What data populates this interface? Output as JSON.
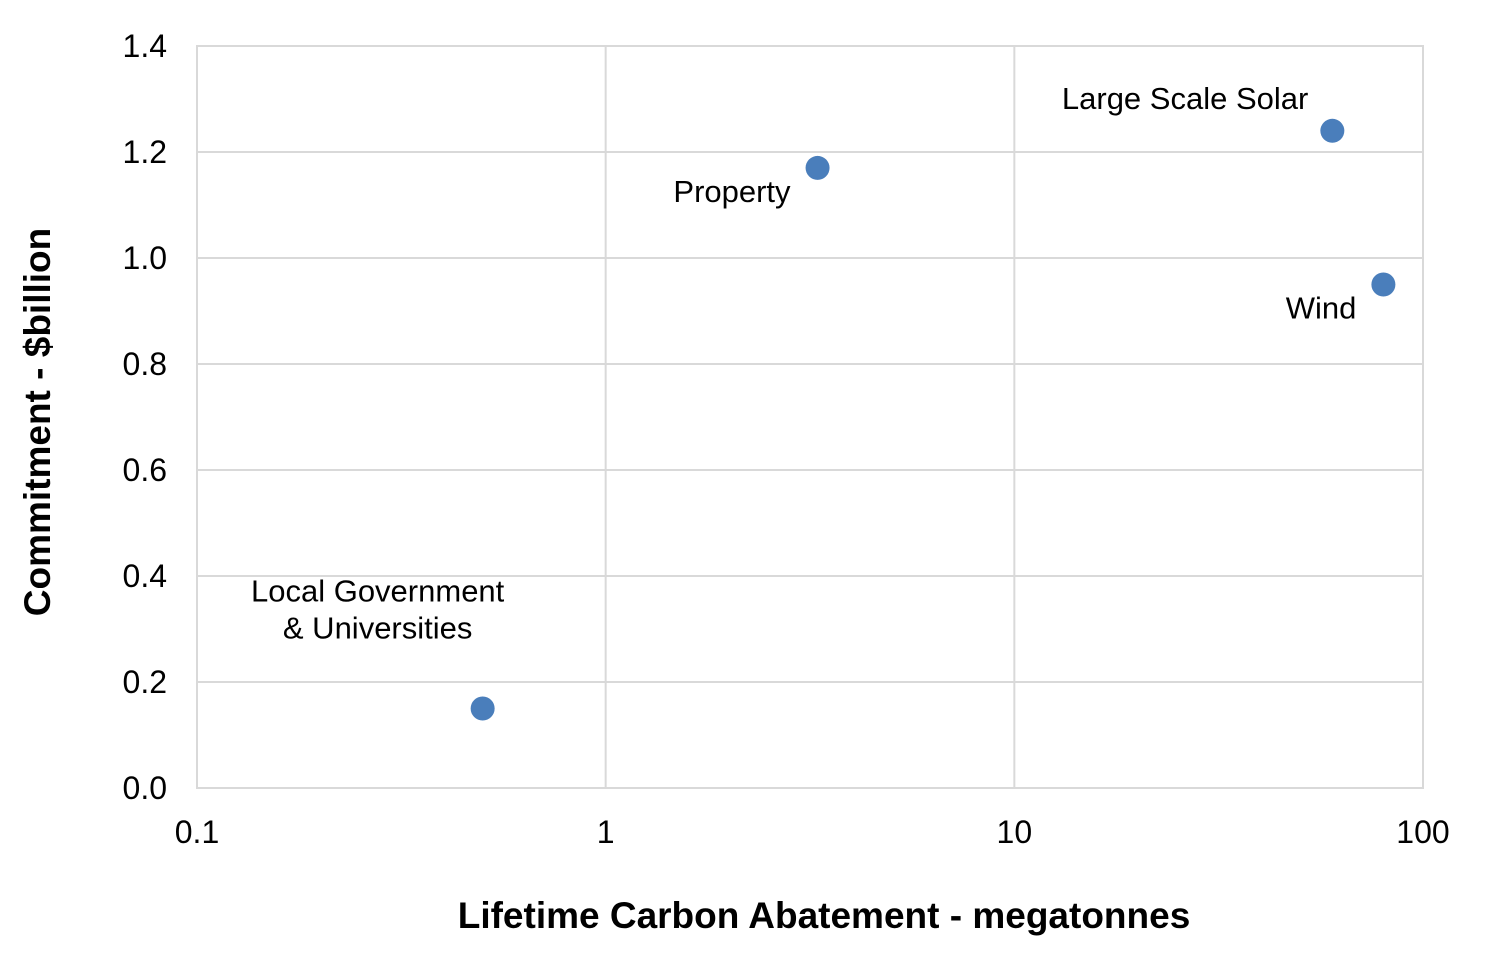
{
  "chart_data": {
    "type": "scatter",
    "title": "",
    "xlabel": "Lifetime Carbon Abatement - megatonnes",
    "ylabel": "Commitment - $billion",
    "x_scale": "log",
    "xlim": [
      0.1,
      100
    ],
    "ylim": [
      0.0,
      1.4
    ],
    "x_ticks": [
      0.1,
      1,
      10,
      100
    ],
    "x_tick_labels": [
      "0.1",
      "1",
      "10",
      "100"
    ],
    "y_ticks": [
      0.0,
      0.2,
      0.4,
      0.6,
      0.8,
      1.0,
      1.2,
      1.4
    ],
    "y_tick_labels": [
      "0.0",
      "0.2",
      "0.4",
      "0.6",
      "0.8",
      "1.0",
      "1.2",
      "1.4"
    ],
    "grid": true,
    "marker_color": "#4a7ebb",
    "points": [
      {
        "name": "Local Government & Universities",
        "label_lines": [
          "Local Government",
          "& Universities"
        ],
        "label_position": "above",
        "x": 0.5,
        "y": 0.15
      },
      {
        "name": "Property",
        "label_lines": [
          "Property"
        ],
        "label_position": "below-left",
        "x": 3.3,
        "y": 1.17
      },
      {
        "name": "Large Scale Solar",
        "label_lines": [
          "Large Scale Solar"
        ],
        "label_position": "above-left",
        "x": 60,
        "y": 1.24
      },
      {
        "name": "Wind",
        "label_lines": [
          "Wind"
        ],
        "label_position": "below-left",
        "x": 80,
        "y": 0.95
      }
    ]
  }
}
